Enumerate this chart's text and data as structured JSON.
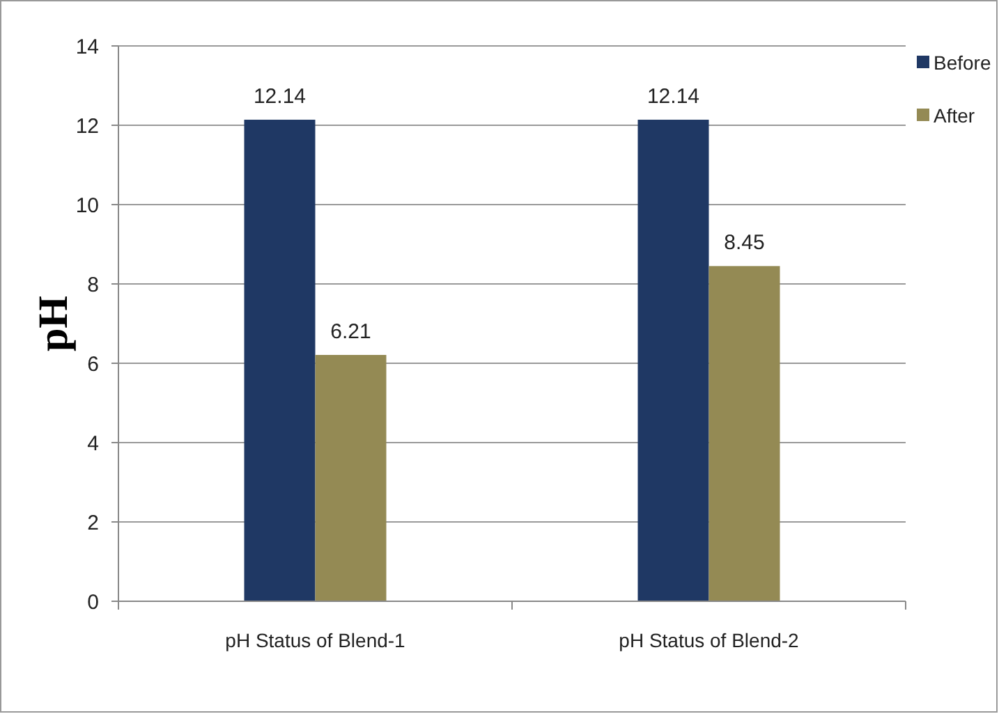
{
  "chart_data": {
    "type": "bar",
    "ylabel": "pH",
    "categories": [
      "pH Status of Blend-1",
      "pH Status of Blend-2"
    ],
    "series": [
      {
        "name": "Before",
        "color": "#1f3864",
        "values": [
          12.14,
          12.14
        ]
      },
      {
        "name": "After",
        "color": "#948a54",
        "values": [
          6.21,
          8.45
        ]
      }
    ],
    "ylim": [
      0,
      14
    ],
    "yticks": [
      0,
      2,
      4,
      6,
      8,
      10,
      12,
      14
    ],
    "grid": "y",
    "legend": "right",
    "data_labels": true
  }
}
